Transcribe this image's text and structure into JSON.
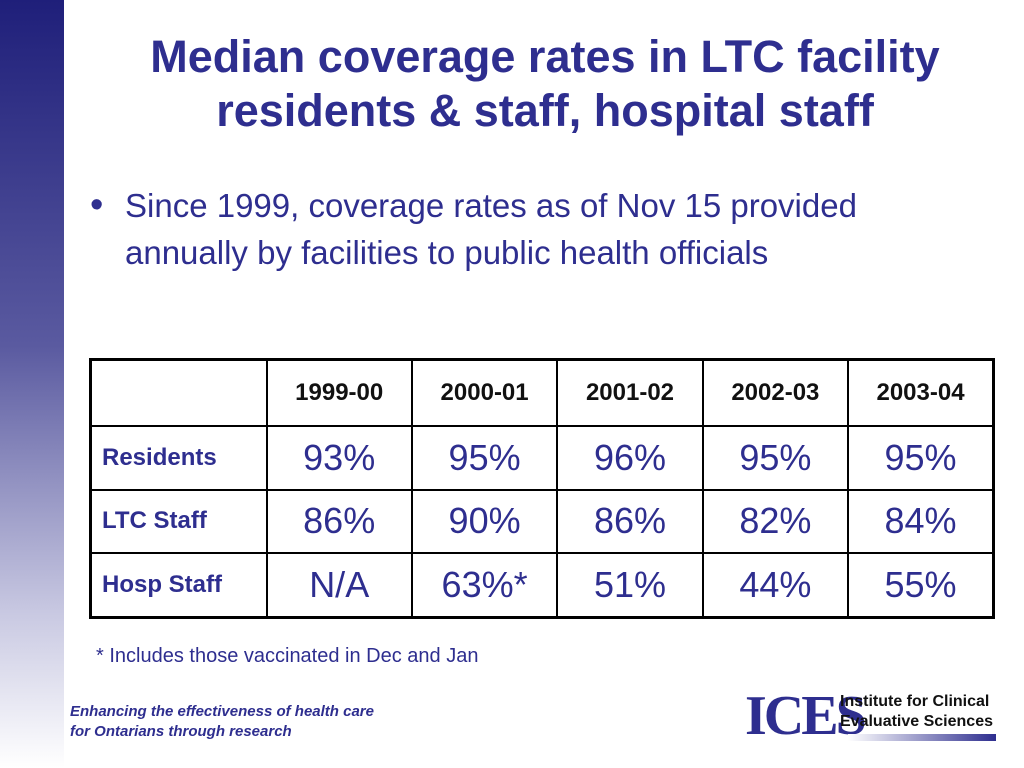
{
  "slide": {
    "title_line1": "Median coverage rates in LTC facility",
    "title_line2": "residents & staff, hospital staff",
    "bullet": "Since 1999, coverage rates as of Nov 15 provided annually by facilities to public health officials",
    "footnote": "* Includes those vaccinated in Dec and Jan"
  },
  "table": {
    "corner": "",
    "columns": [
      "1999-00",
      "2000-01",
      "2001-02",
      "2002-03",
      "2003-04"
    ],
    "rows": [
      {
        "label": "Residents",
        "values": [
          "93%",
          "95%",
          "96%",
          "95%",
          "95%"
        ]
      },
      {
        "label": "LTC Staff",
        "values": [
          "86%",
          "90%",
          "86%",
          "82%",
          "84%"
        ]
      },
      {
        "label": "Hosp Staff",
        "values": [
          "N/A",
          "63%*",
          "51%",
          "44%",
          "55%"
        ]
      }
    ]
  },
  "footer": {
    "tagline_line1": "Enhancing the effectiveness of health care",
    "tagline_line2": "for Ontarians through research",
    "logo_mark": "ICES",
    "logo_line1": "Institute for Clinical",
    "logo_line2": "Evaluative Sciences"
  },
  "colors": {
    "accent": "#2e2e8f",
    "text_dark": "#111111"
  }
}
